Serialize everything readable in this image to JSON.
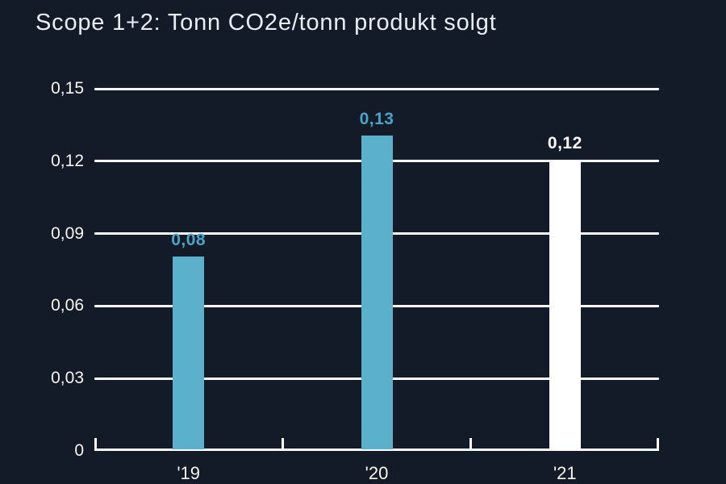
{
  "page": {
    "background_color": "#131b29"
  },
  "chart_data": {
    "type": "bar",
    "title": "Scope 1+2: Tonn CO2e/tonn produkt solgt",
    "categories": [
      "'19",
      "'20",
      "'21"
    ],
    "values": [
      0.08,
      0.13,
      0.12
    ],
    "value_labels": [
      "0,08",
      "0,13",
      "0,12"
    ],
    "y_ticks": [
      0,
      0.03,
      0.06,
      0.09,
      0.12,
      0.15
    ],
    "y_tick_labels": [
      "0",
      "0,03",
      "0,06",
      "0,09",
      "0,12",
      "0,15"
    ],
    "ylim": [
      0,
      0.15
    ],
    "xlabel": "",
    "ylabel": "",
    "grid": true,
    "legend": false,
    "colors": {
      "background": "#131b29",
      "bar_colors": [
        "#5bb0cc",
        "#5bb0cc",
        "#ffffff"
      ],
      "value_label_colors": [
        "#4aa4c9",
        "#4aa4c9",
        "#ffffff"
      ],
      "gridline": "#fcfbf8",
      "axis": "#fcfbf8",
      "tick_text": "#f8f4ee",
      "title_text": "#e9eef3"
    }
  }
}
